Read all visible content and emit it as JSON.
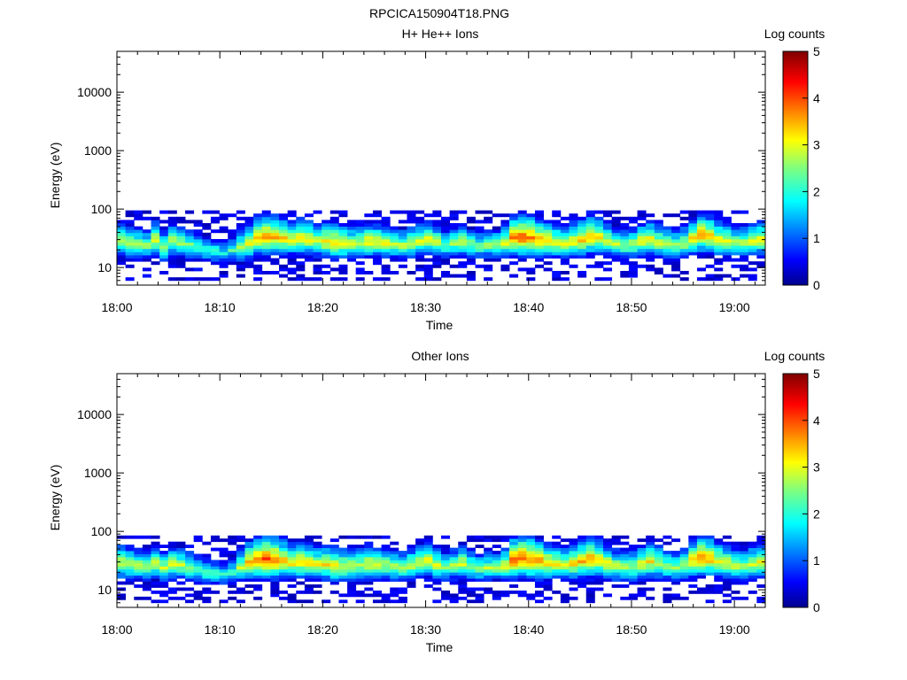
{
  "figure": {
    "title": "RPCICA150904T18.PNG"
  },
  "chart_data": [
    {
      "type": "heatmap",
      "title": "H+ He++ Ions",
      "xlabel": "Time",
      "ylabel": "Energy (eV)",
      "x_ticks": [
        "18:00",
        "18:10",
        "18:20",
        "18:30",
        "18:40",
        "18:50",
        "19:00"
      ],
      "y_ticks": [
        "10",
        "100",
        "1000",
        "10000"
      ],
      "y_scale": "log",
      "ylim": [
        5,
        50000
      ],
      "xlim": [
        "18:00",
        "19:03"
      ],
      "colorbar": {
        "label": "Log counts",
        "ticks": [
          "0",
          "1",
          "2",
          "3",
          "4",
          "5"
        ],
        "range": [
          0,
          5
        ],
        "colormap": "jet"
      },
      "core_energy_ev": [
        28,
        26,
        25,
        24,
        30,
        22,
        28,
        26,
        24,
        22,
        20,
        19,
        18,
        20,
        22,
        26,
        32,
        34,
        33,
        32,
        30,
        31,
        30,
        28,
        28,
        27,
        26,
        25,
        26,
        28,
        27,
        26,
        25,
        24,
        26,
        28,
        30,
        27,
        24,
        26,
        28,
        25,
        23,
        24,
        24,
        26,
        32,
        33,
        32,
        30,
        28,
        27,
        26,
        28,
        30,
        34,
        32,
        28,
        25,
        24,
        25,
        28,
        30,
        27,
        25,
        24,
        26,
        32,
        36,
        34,
        30,
        28,
        26,
        26,
        28,
        30
      ],
      "peak_log_counts": [
        3.0,
        2.9,
        2.8,
        2.6,
        3.1,
        2.7,
        2.9,
        2.8,
        2.6,
        2.4,
        2.3,
        2.2,
        2.0,
        2.2,
        2.8,
        3.2,
        3.5,
        3.7,
        3.6,
        3.4,
        3.1,
        3.3,
        3.2,
        3.0,
        3.3,
        3.4,
        3.2,
        3.0,
        2.9,
        3.2,
        3.1,
        3.0,
        2.8,
        2.8,
        2.9,
        3.0,
        3.1,
        2.9,
        2.6,
        2.7,
        2.9,
        2.6,
        2.5,
        2.6,
        2.7,
        3.0,
        3.8,
        4.0,
        3.8,
        3.6,
        3.4,
        3.1,
        3.0,
        3.2,
        3.4,
        3.6,
        3.3,
        3.0,
        2.8,
        2.7,
        2.8,
        3.1,
        3.2,
        3.0,
        2.8,
        2.7,
        2.9,
        3.3,
        3.6,
        3.5,
        3.2,
        3.0,
        2.8,
        2.8,
        3.0,
        3.1
      ],
      "energy_extent_ev": [
        6,
        95
      ]
    },
    {
      "type": "heatmap",
      "title": "Other Ions",
      "xlabel": "Time",
      "ylabel": "Energy (eV)",
      "x_ticks": [
        "18:00",
        "18:10",
        "18:20",
        "18:30",
        "18:40",
        "18:50",
        "19:00"
      ],
      "y_ticks": [
        "10",
        "100",
        "1000",
        "10000"
      ],
      "y_scale": "log",
      "ylim": [
        5,
        50000
      ],
      "xlim": [
        "18:00",
        "19:03"
      ],
      "colorbar": {
        "label": "Log counts",
        "ticks": [
          "0",
          "1",
          "2",
          "3",
          "4",
          "5"
        ],
        "range": [
          0,
          5
        ],
        "colormap": "jet"
      },
      "core_energy_ev": [
        28,
        27,
        26,
        24,
        28,
        24,
        27,
        26,
        24,
        22,
        20,
        19,
        18,
        20,
        24,
        30,
        33,
        34,
        33,
        31,
        29,
        30,
        29,
        27,
        27,
        26,
        25,
        25,
        26,
        28,
        27,
        26,
        25,
        24,
        26,
        29,
        31,
        27,
        24,
        26,
        28,
        25,
        23,
        24,
        24,
        26,
        32,
        34,
        33,
        31,
        29,
        28,
        26,
        28,
        31,
        34,
        32,
        28,
        25,
        24,
        25,
        28,
        30,
        28,
        25,
        24,
        26,
        32,
        36,
        34,
        30,
        28,
        26,
        26,
        28,
        30
      ],
      "peak_log_counts": [
        3.1,
        2.9,
        2.8,
        2.7,
        3.0,
        2.8,
        3.0,
        2.9,
        2.7,
        2.5,
        2.4,
        2.3,
        2.1,
        2.3,
        2.9,
        3.5,
        3.9,
        4.0,
        3.9,
        3.6,
        3.3,
        3.4,
        3.3,
        3.1,
        3.2,
        3.3,
        3.1,
        3.0,
        2.9,
        3.1,
        3.0,
        2.9,
        2.8,
        2.8,
        2.9,
        3.0,
        3.2,
        3.0,
        2.7,
        2.8,
        3.0,
        2.7,
        2.6,
        2.7,
        2.7,
        3.1,
        3.9,
        4.0,
        3.9,
        3.7,
        3.4,
        3.2,
        3.0,
        3.3,
        3.5,
        3.7,
        3.4,
        3.1,
        2.9,
        2.8,
        2.9,
        3.1,
        3.2,
        3.0,
        2.8,
        2.7,
        2.9,
        3.4,
        3.8,
        3.6,
        3.3,
        3.1,
        2.9,
        2.8,
        3.0,
        3.1
      ],
      "energy_extent_ev": [
        6,
        85
      ]
    }
  ]
}
